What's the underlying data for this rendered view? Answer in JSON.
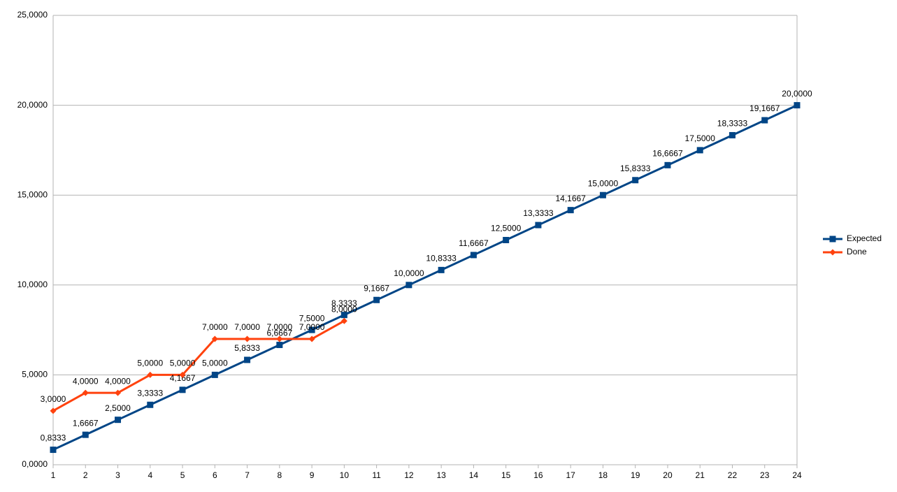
{
  "chart_data": {
    "type": "line",
    "categories": [
      "1",
      "2",
      "3",
      "4",
      "5",
      "6",
      "7",
      "8",
      "9",
      "10",
      "11",
      "12",
      "13",
      "14",
      "15",
      "16",
      "17",
      "18",
      "19",
      "20",
      "21",
      "22",
      "23",
      "24"
    ],
    "series": [
      {
        "name": "Expected",
        "color": "#004586",
        "marker": "square",
        "values": [
          0.8333,
          1.6667,
          2.5,
          3.3333,
          4.1667,
          5,
          5.8333,
          6.6667,
          7.5,
          8.3333,
          9.1667,
          10,
          10.8333,
          11.6667,
          12.5,
          13.3333,
          14.1667,
          15,
          15.8333,
          16.6667,
          17.5,
          18.3333,
          19.1667,
          20
        ],
        "value_labels": [
          "0,8333",
          "1,6667",
          "2,5000",
          "3,3333",
          "4,1667",
          "5,0000",
          "5,8333",
          "6,6667",
          "7,5000",
          "8,3333",
          "9,1667",
          "10,0000",
          "10,8333",
          "11,6667",
          "12,5000",
          "13,3333",
          "14,1667",
          "15,0000",
          "15,8333",
          "16,6667",
          "17,5000",
          "18,3333",
          "19,1667",
          "20,0000"
        ]
      },
      {
        "name": "Done",
        "color": "#ff420e",
        "marker": "diamond",
        "values": [
          3,
          4,
          4,
          5,
          5,
          7,
          7,
          7,
          7,
          8,
          null,
          null,
          null,
          null,
          null,
          null,
          null,
          null,
          null,
          null,
          null,
          null,
          null,
          null
        ],
        "value_labels": [
          "3,0000",
          "4,0000",
          "4,0000",
          "5,0000",
          "5,0000",
          "7,0000",
          "7,0000",
          "7,0000",
          "7,0000",
          "8,0000",
          null,
          null,
          null,
          null,
          null,
          null,
          null,
          null,
          null,
          null,
          null,
          null,
          null,
          null
        ]
      }
    ],
    "ylim": [
      0,
      25
    ],
    "yticks": [
      {
        "value": 0,
        "label": "0,0000"
      },
      {
        "value": 5,
        "label": "5,0000"
      },
      {
        "value": 10,
        "label": "10,0000"
      },
      {
        "value": 15,
        "label": "15,0000"
      },
      {
        "value": 20,
        "label": "20,0000"
      },
      {
        "value": 25,
        "label": "25,0000"
      }
    ],
    "grid": true,
    "legend": "right"
  }
}
